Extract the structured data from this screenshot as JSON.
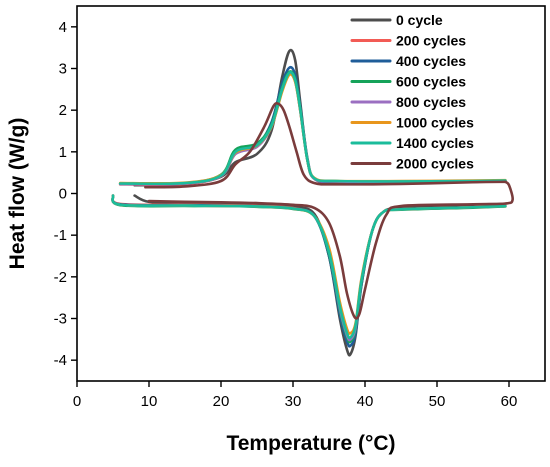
{
  "chart_data": {
    "type": "line",
    "title": "",
    "xlabel": "Temperature (°C)",
    "ylabel": "Heat flow (W/g)",
    "xlim": [
      0,
      65
    ],
    "ylim": [
      -4.5,
      4.5
    ],
    "xticks": [
      0,
      10,
      20,
      30,
      40,
      50,
      60
    ],
    "yticks": [
      -4,
      -3,
      -2,
      -1,
      0,
      1,
      2,
      3,
      4
    ],
    "grid": false,
    "legend_position": "top-right",
    "series": [
      {
        "name": "0 cycle",
        "color": "#4d4d4d",
        "cooling": [
          [
            8,
            0.2
          ],
          [
            15,
            0.22
          ],
          [
            20,
            0.4
          ],
          [
            22,
            0.75
          ],
          [
            25,
            0.95
          ],
          [
            27,
            1.5
          ],
          [
            28.5,
            2.8
          ],
          [
            29.5,
            3.42
          ],
          [
            30.3,
            3.2
          ],
          [
            31,
            2.2
          ],
          [
            32,
            0.8
          ],
          [
            33,
            0.35
          ],
          [
            36,
            0.25
          ],
          [
            45,
            0.25
          ],
          [
            55,
            0.28
          ],
          [
            59.5,
            0.3
          ]
        ],
        "heating": [
          [
            8,
            -0.05
          ],
          [
            10,
            -0.2
          ],
          [
            15,
            -0.22
          ],
          [
            20,
            -0.24
          ],
          [
            25,
            -0.27
          ],
          [
            30,
            -0.32
          ],
          [
            33,
            -0.5
          ],
          [
            35,
            -1.5
          ],
          [
            36.5,
            -3.0
          ],
          [
            37.5,
            -3.75
          ],
          [
            38,
            -3.85
          ],
          [
            38.7,
            -3.4
          ],
          [
            39.5,
            -2.2
          ],
          [
            41,
            -0.9
          ],
          [
            42.5,
            -0.45
          ],
          [
            45,
            -0.35
          ],
          [
            55,
            -0.27
          ],
          [
            59.5,
            -0.25
          ]
        ]
      },
      {
        "name": "200 cycles",
        "color": "#f25b55",
        "cooling": [
          [
            6,
            0.22
          ],
          [
            15,
            0.23
          ],
          [
            20,
            0.42
          ],
          [
            22,
            0.95
          ],
          [
            25,
            1.15
          ],
          [
            27,
            1.6
          ],
          [
            28.5,
            2.5
          ],
          [
            29.5,
            2.9
          ],
          [
            30.3,
            2.7
          ],
          [
            31,
            2.0
          ],
          [
            32,
            0.8
          ],
          [
            33,
            0.35
          ],
          [
            36,
            0.28
          ],
          [
            45,
            0.27
          ],
          [
            55,
            0.28
          ],
          [
            59.5,
            0.3
          ]
        ],
        "heating": [
          [
            5,
            -0.05
          ],
          [
            6,
            -0.25
          ],
          [
            15,
            -0.27
          ],
          [
            20,
            -0.28
          ],
          [
            25,
            -0.3
          ],
          [
            30,
            -0.35
          ],
          [
            33,
            -0.55
          ],
          [
            35,
            -1.4
          ],
          [
            36.5,
            -2.7
          ],
          [
            37.5,
            -3.4
          ],
          [
            38,
            -3.5
          ],
          [
            38.7,
            -3.2
          ],
          [
            39.5,
            -2.1
          ],
          [
            41,
            -0.9
          ],
          [
            42.5,
            -0.45
          ],
          [
            45,
            -0.38
          ],
          [
            55,
            -0.33
          ],
          [
            59.5,
            -0.3
          ]
        ]
      },
      {
        "name": "400 cycles",
        "color": "#1f5d99",
        "cooling": [
          [
            6,
            0.23
          ],
          [
            15,
            0.24
          ],
          [
            20,
            0.43
          ],
          [
            22,
            0.95
          ],
          [
            25,
            1.15
          ],
          [
            27,
            1.7
          ],
          [
            28.5,
            2.65
          ],
          [
            29.5,
            3.02
          ],
          [
            30.3,
            2.85
          ],
          [
            31,
            2.1
          ],
          [
            32,
            0.85
          ],
          [
            33,
            0.35
          ],
          [
            36,
            0.28
          ],
          [
            45,
            0.27
          ],
          [
            55,
            0.28
          ],
          [
            59.5,
            0.3
          ]
        ],
        "heating": [
          [
            5,
            -0.05
          ],
          [
            6,
            -0.26
          ],
          [
            15,
            -0.28
          ],
          [
            20,
            -0.29
          ],
          [
            25,
            -0.31
          ],
          [
            30,
            -0.36
          ],
          [
            33,
            -0.55
          ],
          [
            35,
            -1.5
          ],
          [
            36.5,
            -2.9
          ],
          [
            37.5,
            -3.55
          ],
          [
            38,
            -3.65
          ],
          [
            38.7,
            -3.35
          ],
          [
            39.5,
            -2.2
          ],
          [
            41,
            -0.9
          ],
          [
            42.5,
            -0.45
          ],
          [
            45,
            -0.38
          ],
          [
            55,
            -0.33
          ],
          [
            59.5,
            -0.3
          ]
        ]
      },
      {
        "name": "600 cycles",
        "color": "#16a35a",
        "cooling": [
          [
            6,
            0.24
          ],
          [
            15,
            0.25
          ],
          [
            20,
            0.45
          ],
          [
            22,
            1.05
          ],
          [
            25,
            1.2
          ],
          [
            27,
            1.65
          ],
          [
            28.5,
            2.55
          ],
          [
            29.5,
            2.92
          ],
          [
            30.3,
            2.75
          ],
          [
            31,
            2.05
          ],
          [
            32,
            0.8
          ],
          [
            33,
            0.35
          ],
          [
            36,
            0.3
          ],
          [
            45,
            0.28
          ],
          [
            55,
            0.29
          ],
          [
            59.5,
            0.31
          ]
        ],
        "heating": [
          [
            5,
            -0.05
          ],
          [
            6,
            -0.28
          ],
          [
            15,
            -0.3
          ],
          [
            20,
            -0.3
          ],
          [
            25,
            -0.32
          ],
          [
            30,
            -0.37
          ],
          [
            33,
            -0.55
          ],
          [
            35,
            -1.45
          ],
          [
            36.5,
            -2.8
          ],
          [
            37.5,
            -3.45
          ],
          [
            38,
            -3.55
          ],
          [
            38.7,
            -3.25
          ],
          [
            39.5,
            -2.15
          ],
          [
            41,
            -0.9
          ],
          [
            42.5,
            -0.45
          ],
          [
            45,
            -0.39
          ],
          [
            55,
            -0.34
          ],
          [
            59.5,
            -0.31
          ]
        ]
      },
      {
        "name": "800 cycles",
        "color": "#9b6fc1",
        "cooling": [
          [
            6,
            0.23
          ],
          [
            15,
            0.24
          ],
          [
            20,
            0.42
          ],
          [
            22,
            0.95
          ],
          [
            25,
            1.12
          ],
          [
            27,
            1.6
          ],
          [
            28.5,
            2.5
          ],
          [
            29.5,
            2.88
          ],
          [
            30.3,
            2.7
          ],
          [
            31,
            2.0
          ],
          [
            32,
            0.8
          ],
          [
            33,
            0.35
          ],
          [
            36,
            0.29
          ],
          [
            45,
            0.28
          ],
          [
            55,
            0.29
          ],
          [
            59.5,
            0.3
          ]
        ],
        "heating": [
          [
            5,
            -0.05
          ],
          [
            6,
            -0.27
          ],
          [
            15,
            -0.29
          ],
          [
            20,
            -0.3
          ],
          [
            25,
            -0.31
          ],
          [
            30,
            -0.36
          ],
          [
            33,
            -0.55
          ],
          [
            35,
            -1.4
          ],
          [
            36.5,
            -2.75
          ],
          [
            37.5,
            -3.4
          ],
          [
            38,
            -3.5
          ],
          [
            38.7,
            -3.2
          ],
          [
            39.5,
            -2.1
          ],
          [
            41,
            -0.9
          ],
          [
            42.5,
            -0.45
          ],
          [
            45,
            -0.38
          ],
          [
            55,
            -0.33
          ],
          [
            59.5,
            -0.3
          ]
        ]
      },
      {
        "name": "1000 cycles",
        "color": "#e8961c",
        "cooling": [
          [
            6,
            0.25
          ],
          [
            15,
            0.26
          ],
          [
            20,
            0.44
          ],
          [
            22,
            0.98
          ],
          [
            25,
            1.15
          ],
          [
            27,
            1.6
          ],
          [
            28.5,
            2.45
          ],
          [
            29.5,
            2.85
          ],
          [
            30.3,
            2.68
          ],
          [
            31,
            2.0
          ],
          [
            32,
            0.8
          ],
          [
            33,
            0.37
          ],
          [
            36,
            0.3
          ],
          [
            45,
            0.3
          ],
          [
            55,
            0.31
          ],
          [
            59.5,
            0.32
          ]
        ],
        "heating": [
          [
            5,
            -0.05
          ],
          [
            6,
            -0.27
          ],
          [
            15,
            -0.29
          ],
          [
            20,
            -0.3
          ],
          [
            25,
            -0.31
          ],
          [
            30,
            -0.36
          ],
          [
            33,
            -0.55
          ],
          [
            35,
            -1.3
          ],
          [
            36.5,
            -2.6
          ],
          [
            37.5,
            -3.25
          ],
          [
            38,
            -3.35
          ],
          [
            38.7,
            -3.1
          ],
          [
            39.5,
            -2.05
          ],
          [
            41,
            -0.9
          ],
          [
            42.5,
            -0.45
          ],
          [
            45,
            -0.38
          ],
          [
            55,
            -0.33
          ],
          [
            59.5,
            -0.3
          ]
        ]
      },
      {
        "name": "1400 cycles",
        "color": "#1bbc9b",
        "cooling": [
          [
            6,
            0.24
          ],
          [
            15,
            0.25
          ],
          [
            20,
            0.43
          ],
          [
            22,
            1.0
          ],
          [
            25,
            1.16
          ],
          [
            27,
            1.62
          ],
          [
            28.5,
            2.5
          ],
          [
            29.5,
            2.9
          ],
          [
            30.3,
            2.72
          ],
          [
            31,
            2.02
          ],
          [
            32,
            0.8
          ],
          [
            33,
            0.36
          ],
          [
            36,
            0.3
          ],
          [
            45,
            0.29
          ],
          [
            55,
            0.3
          ],
          [
            59.5,
            0.31
          ]
        ],
        "heating": [
          [
            5,
            -0.05
          ],
          [
            6,
            -0.27
          ],
          [
            15,
            -0.29
          ],
          [
            20,
            -0.3
          ],
          [
            25,
            -0.31
          ],
          [
            30,
            -0.36
          ],
          [
            33,
            -0.55
          ],
          [
            35,
            -1.4
          ],
          [
            36.5,
            -2.7
          ],
          [
            37.5,
            -3.35
          ],
          [
            38,
            -3.45
          ],
          [
            38.7,
            -3.15
          ],
          [
            39.5,
            -2.1
          ],
          [
            41,
            -0.9
          ],
          [
            42.5,
            -0.45
          ],
          [
            45,
            -0.38
          ],
          [
            55,
            -0.33
          ],
          [
            59.5,
            -0.3
          ]
        ]
      },
      {
        "name": "2000 cycles",
        "color": "#7a3c3c",
        "cooling": [
          [
            9.5,
            0.15
          ],
          [
            15,
            0.17
          ],
          [
            20,
            0.3
          ],
          [
            22,
            0.7
          ],
          [
            24,
            1.0
          ],
          [
            26,
            1.6
          ],
          [
            27.3,
            2.1
          ],
          [
            28,
            2.15
          ],
          [
            28.7,
            2.0
          ],
          [
            29.5,
            1.6
          ],
          [
            30.5,
            1.0
          ],
          [
            31.5,
            0.45
          ],
          [
            33,
            0.25
          ],
          [
            36,
            0.22
          ],
          [
            45,
            0.23
          ],
          [
            55,
            0.27
          ],
          [
            59.5,
            0.28
          ]
        ],
        "heating": [
          [
            10,
            -0.18
          ],
          [
            15,
            -0.2
          ],
          [
            20,
            -0.21
          ],
          [
            25,
            -0.23
          ],
          [
            30,
            -0.27
          ],
          [
            33,
            -0.35
          ],
          [
            35,
            -0.7
          ],
          [
            36.5,
            -1.5
          ],
          [
            37.5,
            -2.4
          ],
          [
            38.5,
            -2.95
          ],
          [
            39.2,
            -2.9
          ],
          [
            40,
            -2.3
          ],
          [
            41.5,
            -1.2
          ],
          [
            43,
            -0.5
          ],
          [
            45,
            -0.3
          ],
          [
            55,
            -0.26
          ],
          [
            59.5,
            -0.24
          ],
          [
            60.5,
            -0.15
          ],
          [
            60,
            0.2
          ],
          [
            59.5,
            0.28
          ]
        ]
      }
    ]
  }
}
